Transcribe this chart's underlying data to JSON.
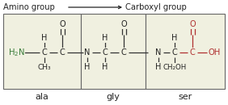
{
  "title_left": "Amino group",
  "title_right": "Carboxyl group",
  "arrow_color": "#444444",
  "box_color": "#666666",
  "text_color": "#222222",
  "green_color": "#3a7d3a",
  "red_color": "#b03030",
  "label_ala": "ala",
  "label_gly": "gly",
  "label_ser": "ser",
  "bg_color": "#ffffff",
  "box_bg": "#f0f0e0",
  "fig_width": 2.82,
  "fig_height": 1.3,
  "dpi": 100
}
